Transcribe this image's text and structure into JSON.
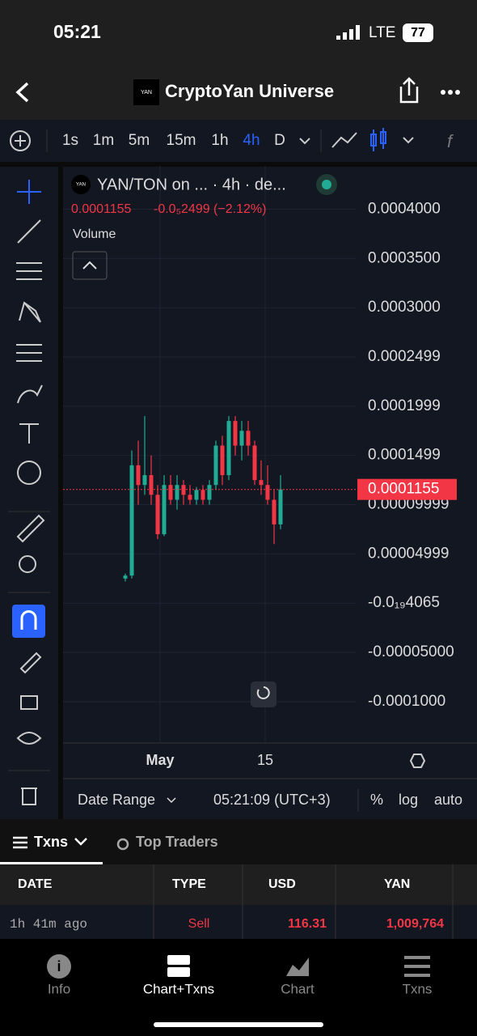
{
  "status": {
    "time": "05:21",
    "network": "LTE",
    "battery": "77"
  },
  "header": {
    "logo": "YAN",
    "title": "CryptoYan Universe"
  },
  "toolbar": {
    "intervals": [
      "1s",
      "1m",
      "5m",
      "15m",
      "1h",
      "4h",
      "D"
    ],
    "active_interval": "4h"
  },
  "chart": {
    "legend_logo": "YAN",
    "legend_title": "YAN/TON on ... · 4h · de...",
    "legend_price": "0.0001155",
    "legend_change": "-0.0₅2499 (−2.12%)",
    "volume_label": "Volume",
    "current_price": 0.0001155,
    "ylim": [
      -0.000142,
      0.000444
    ],
    "yticks": [
      {
        "value": 0.0004,
        "label": "0.0004000"
      },
      {
        "value": 0.00035,
        "label": "0.0003500"
      },
      {
        "value": 0.0003,
        "label": "0.0003000"
      },
      {
        "value": 0.00025,
        "label": "0.0002499"
      },
      {
        "value": 0.0002,
        "label": "0.0001999"
      },
      {
        "value": 0.00015,
        "label": "0.0001499"
      },
      {
        "value": 0.0001,
        "label": "0.00009999"
      },
      {
        "value": 5e-05,
        "label": "0.00004999"
      },
      {
        "value": 0,
        "label": "-0.0₁₉4065"
      },
      {
        "value": -5e-05,
        "label": "-0.00005000"
      },
      {
        "value": -0.0001,
        "label": "-0.0001000"
      }
    ],
    "x_labels": [
      "May",
      "15"
    ],
    "candles": [
      [
        2.5e-05,
        3e-05,
        2.2e-05,
        2.8e-05
      ],
      [
        2.8e-05,
        0.000155,
        2.5e-05,
        0.00014
      ],
      [
        0.00014,
        0.000165,
        0.0001,
        0.00012
      ],
      [
        0.00012,
        0.00019,
        0.00011,
        0.00013
      ],
      [
        0.00013,
        0.00015,
        0.0001,
        0.00011
      ],
      [
        0.00011,
        0.00012,
        6.5e-05,
        7e-05
      ],
      [
        7e-05,
        0.00013,
        6.8e-05,
        0.00012
      ],
      [
        0.00012,
        0.00013,
        0.0001,
        0.000105
      ],
      [
        0.000105,
        0.00013,
        9.5e-05,
        0.00012
      ],
      [
        0.00012,
        0.000125,
        0.0001,
        0.00011
      ],
      [
        0.00011,
        0.00012,
        0.0001,
        0.000105
      ],
      [
        0.000105,
        0.000118,
        0.0001,
        0.000115
      ],
      [
        0.000115,
        0.00012,
        0.0001,
        0.000105
      ],
      [
        0.000105,
        0.000125,
        0.0001,
        0.00012
      ],
      [
        0.00012,
        0.000165,
        0.000115,
        0.00016
      ],
      [
        0.00016,
        0.00017,
        0.00012,
        0.00013
      ],
      [
        0.00013,
        0.00019,
        0.000125,
        0.000185
      ],
      [
        0.000185,
        0.00019,
        0.00015,
        0.00016
      ],
      [
        0.00016,
        0.000185,
        0.000145,
        0.000175
      ],
      [
        0.000175,
        0.000185,
        0.00015,
        0.00016
      ],
      [
        0.00016,
        0.000165,
        0.00012,
        0.000125
      ],
      [
        0.000125,
        0.000145,
        0.00011,
        0.00012
      ],
      [
        0.00012,
        0.00014,
        0.0001,
        0.000105
      ],
      [
        0.000105,
        0.000115,
        6e-05,
        8e-05
      ],
      [
        8e-05,
        0.00013,
        7.5e-05,
        0.0001155
      ]
    ],
    "up_color": "#22ab94",
    "down_color": "#f23645"
  },
  "chart_footer": {
    "date_range": "Date Range",
    "clock": "05:21:09 (UTC+3)",
    "options": [
      "%",
      "log",
      "auto"
    ]
  },
  "tabs": [
    "Txns",
    "Top Traders"
  ],
  "table": {
    "columns": [
      "DATE",
      "TYPE",
      "USD",
      "YAN"
    ],
    "rows": [
      [
        "1h 41m ago",
        "Sell",
        "116.31",
        "1,009,764"
      ]
    ]
  },
  "nav": [
    "Info",
    "Chart+Txns",
    "Chart",
    "Txns"
  ]
}
